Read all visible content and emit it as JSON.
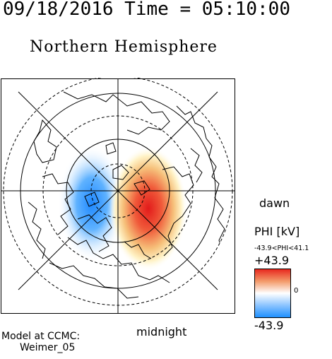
{
  "header": {
    "datetime": "09/18/2016 Time = 05:10:00",
    "hemisphere": "Northern Hemisphere"
  },
  "labels": {
    "dawn": "dawn",
    "midnight": "midnight"
  },
  "colorbar": {
    "title": "PHI [kV]",
    "range_text": "-43.9<PHI<41.1",
    "max_label": "+43.9",
    "zero_label": "0",
    "min_label": "-43.9",
    "colors": {
      "low": "#1e90ff",
      "mid": "#ffffff",
      "high": "#e8281e"
    }
  },
  "footer": {
    "model_line1": "Model at CCMC:",
    "model_line2": "Weimer_05"
  }
}
